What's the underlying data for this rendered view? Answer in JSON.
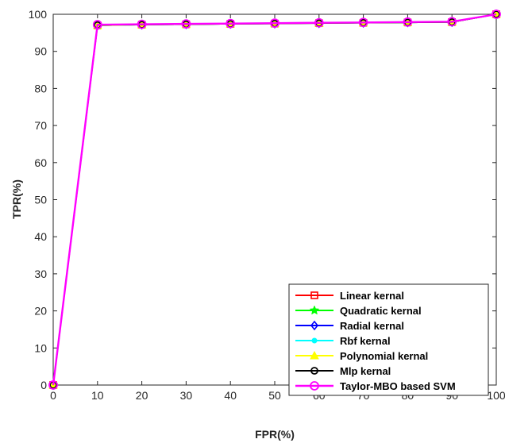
{
  "chart_data": {
    "type": "line",
    "title": "",
    "xlabel": "FPR(%)",
    "ylabel": "TPR(%)",
    "xlim": [
      0,
      100
    ],
    "ylim": [
      0,
      100
    ],
    "x": [
      0,
      10,
      20,
      30,
      40,
      50,
      60,
      70,
      80,
      90,
      100
    ],
    "xticks": [
      "0",
      "10",
      "20",
      "30",
      "40",
      "50",
      "60",
      "70",
      "80",
      "90",
      "100"
    ],
    "yticks": [
      "0",
      "10",
      "20",
      "30",
      "40",
      "50",
      "60",
      "70",
      "80",
      "90",
      "100"
    ],
    "grid": false,
    "legend_position": "bottom-right",
    "series": [
      {
        "name": "Linear kernal",
        "color": "#ff0000",
        "marker": "square",
        "values": [
          0,
          97.0,
          97.2,
          97.3,
          97.4,
          97.5,
          97.6,
          97.7,
          97.8,
          97.9,
          100
        ]
      },
      {
        "name": "Quadratic kernal",
        "color": "#00ff00",
        "marker": "star",
        "values": [
          0,
          97.0,
          97.2,
          97.3,
          97.4,
          97.5,
          97.6,
          97.7,
          97.8,
          97.9,
          100
        ]
      },
      {
        "name": "Radial kernal",
        "color": "#0000ff",
        "marker": "diamond",
        "values": [
          0,
          97.0,
          97.2,
          97.3,
          97.4,
          97.5,
          97.6,
          97.7,
          97.8,
          97.9,
          100
        ]
      },
      {
        "name": "Rbf kernal",
        "color": "#00ffff",
        "marker": "dot",
        "values": [
          0,
          97.0,
          97.2,
          97.3,
          97.4,
          97.5,
          97.6,
          97.7,
          97.8,
          97.9,
          100
        ]
      },
      {
        "name": "Polynomial kernal",
        "color": "#ffff00",
        "marker": "triangle",
        "values": [
          0,
          97.0,
          97.2,
          97.3,
          97.4,
          97.5,
          97.6,
          97.7,
          97.8,
          97.9,
          100
        ]
      },
      {
        "name": "Mlp kernal",
        "color": "#000000",
        "marker": "circle",
        "values": [
          0,
          97.1,
          97.2,
          97.3,
          97.4,
          97.5,
          97.6,
          97.7,
          97.8,
          97.9,
          100
        ]
      },
      {
        "name": "Taylor-MBO based SVM",
        "color": "#ff00ff",
        "marker": "circle",
        "values": [
          0,
          97.2,
          97.3,
          97.4,
          97.5,
          97.6,
          97.7,
          97.8,
          97.9,
          98.0,
          100
        ]
      }
    ]
  }
}
